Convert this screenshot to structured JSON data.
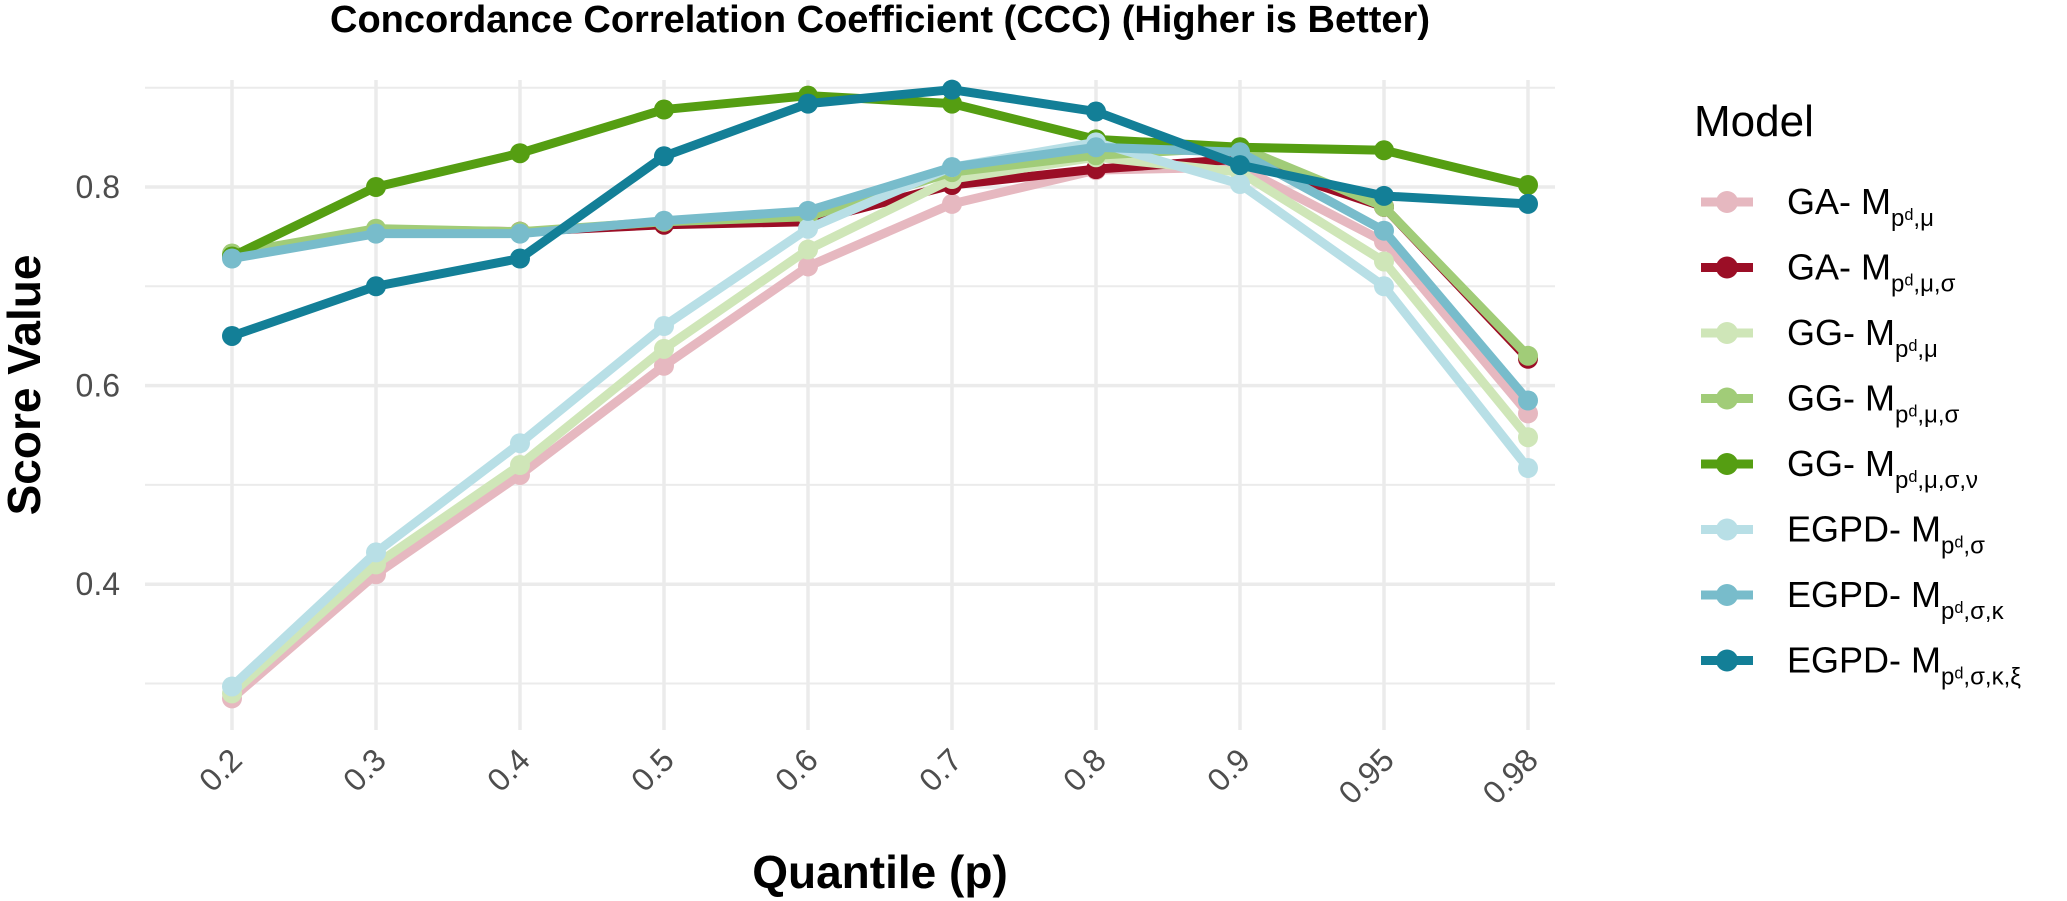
{
  "chart_data": {
    "type": "line",
    "title": "Concordance Correlation Coefficient (CCC) (Higher is Better)",
    "xlabel": "Quantile (p)",
    "ylabel": "Score Value",
    "categories": [
      "0.2",
      "0.3",
      "0.4",
      "0.5",
      "0.6",
      "0.7",
      "0.8",
      "0.9",
      "0.95",
      "0.98"
    ],
    "ylim": [
      0.25,
      0.92
    ],
    "yticks": [
      0.4,
      0.6,
      0.8
    ],
    "ytick_labels": [
      "0.4",
      "0.6",
      "0.8"
    ],
    "grid": true,
    "legend": {
      "title": "Model",
      "position": "right"
    },
    "series": [
      {
        "name": "GA- M_{p_d,μ}",
        "prefix": "GA- M",
        "sub": "pd,μ",
        "color": "#e6b8c0",
        "values": [
          0.285,
          0.41,
          0.51,
          0.62,
          0.72,
          0.783,
          0.817,
          0.82,
          0.745,
          0.572
        ]
      },
      {
        "name": "GA- M_{p_d,μ,σ}",
        "prefix": "GA- M",
        "sub": "pd,μ,σ",
        "color": "#9b0e26",
        "values": [
          0.73,
          0.757,
          0.755,
          0.762,
          0.765,
          0.802,
          0.818,
          0.828,
          0.78,
          0.627
        ]
      },
      {
        "name": "GG- M_{p_d,μ}",
        "prefix": "GG- M",
        "sub": "pd,μ",
        "color": "#cfe6b8",
        "values": [
          0.29,
          0.42,
          0.52,
          0.637,
          0.737,
          0.808,
          0.83,
          0.815,
          0.725,
          0.548
        ]
      },
      {
        "name": "GG- M_{p_d,μ,σ}",
        "prefix": "GG- M",
        "sub": "pd,μ,σ",
        "color": "#a1cc78",
        "values": [
          0.733,
          0.758,
          0.755,
          0.765,
          0.77,
          0.815,
          0.832,
          0.84,
          0.78,
          0.63
        ]
      },
      {
        "name": "GG- M_{p_d,μ,σ,ν}",
        "prefix": "GG- M",
        "sub": "pd,μ,σ,ν",
        "color": "#559e12",
        "values": [
          0.73,
          0.8,
          0.834,
          0.878,
          0.892,
          0.884,
          0.848,
          0.84,
          0.837,
          0.802
        ]
      },
      {
        "name": "EGPD- M_{p_d,σ}",
        "prefix": "EGPD- M",
        "sub": "pd,σ",
        "color": "#b8dfe6",
        "values": [
          0.297,
          0.432,
          0.542,
          0.66,
          0.758,
          0.82,
          0.845,
          0.803,
          0.7,
          0.517
        ]
      },
      {
        "name": "EGPD- M_{p_d,σ,κ}",
        "prefix": "EGPD- M",
        "sub": "pd,σ,κ",
        "color": "#78bccb",
        "values": [
          0.728,
          0.753,
          0.753,
          0.766,
          0.776,
          0.82,
          0.84,
          0.835,
          0.756,
          0.585
        ]
      },
      {
        "name": "EGPD- M_{p_d,σ,κ,ξ}",
        "prefix": "EGPD- M",
        "sub": "pd,σ,κ,ξ",
        "color": "#137f97",
        "values": [
          0.65,
          0.7,
          0.728,
          0.831,
          0.884,
          0.898,
          0.876,
          0.822,
          0.791,
          0.783
        ]
      }
    ]
  }
}
